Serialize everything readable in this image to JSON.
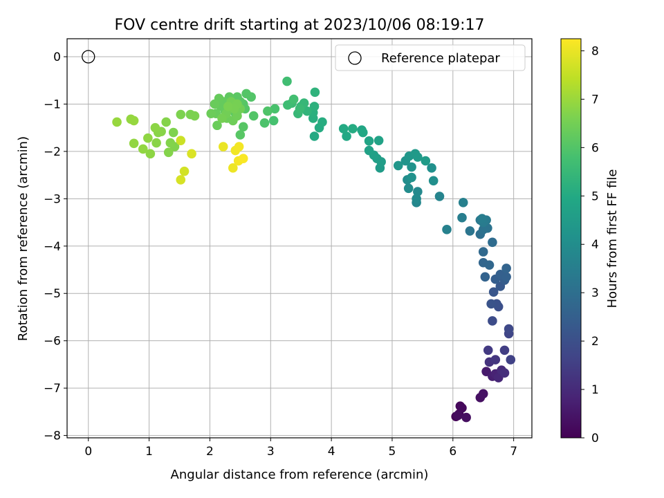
{
  "chart_data": {
    "type": "scatter",
    "title": "FOV centre drift starting at 2023/10/06 08:19:17",
    "xlabel": "Angular distance from reference (arcmin)",
    "ylabel": "Rotation from reference (arcmin)",
    "colorbar_label": "Hours from first FF file",
    "xlim": [
      -0.35,
      7.3
    ],
    "ylim": [
      -8.05,
      0.38
    ],
    "clim": [
      0,
      8.25
    ],
    "colormap": "viridis",
    "grid": true,
    "legend_position": "top-right",
    "xticks": [
      0,
      1,
      2,
      3,
      4,
      5,
      6,
      7
    ],
    "yticks": [
      0,
      -1,
      -2,
      -3,
      -4,
      -5,
      -6,
      -7,
      -8
    ],
    "cticks": [
      0,
      1,
      2,
      3,
      4,
      5,
      6,
      7,
      8
    ],
    "xtick_labels": [
      "0",
      "1",
      "2",
      "3",
      "4",
      "5",
      "6",
      "7"
    ],
    "ytick_labels": [
      "0",
      "−1",
      "−2",
      "−3",
      "−4",
      "−5",
      "−6",
      "−7",
      "−8"
    ],
    "ctick_labels": [
      "0",
      "1",
      "2",
      "3",
      "4",
      "5",
      "6",
      "7",
      "8"
    ],
    "reference": {
      "label": "Reference platepar",
      "x": 0,
      "y": 0
    },
    "points": [
      [
        6.05,
        -7.6,
        0.05
      ],
      [
        6.1,
        -7.55,
        0.1
      ],
      [
        6.12,
        -7.38,
        0.15
      ],
      [
        6.15,
        -7.42,
        0.2
      ],
      [
        6.08,
        -7.58,
        0.25
      ],
      [
        6.22,
        -7.62,
        0.3
      ],
      [
        6.45,
        -7.2,
        0.35
      ],
      [
        6.5,
        -7.12,
        0.4
      ],
      [
        6.55,
        -6.65,
        0.6
      ],
      [
        6.65,
        -6.75,
        0.7
      ],
      [
        6.7,
        -6.7,
        0.8
      ],
      [
        6.75,
        -6.78,
        0.9
      ],
      [
        6.8,
        -6.62,
        1.0
      ],
      [
        6.85,
        -6.68,
        1.1
      ],
      [
        6.6,
        -6.45,
        1.2
      ],
      [
        6.7,
        -6.4,
        1.3
      ],
      [
        6.58,
        -6.2,
        1.4
      ],
      [
        6.85,
        -6.2,
        1.5
      ],
      [
        6.95,
        -6.4,
        1.6
      ],
      [
        6.92,
        -5.85,
        1.7
      ],
      [
        6.92,
        -5.75,
        1.8
      ],
      [
        6.65,
        -5.58,
        1.9
      ],
      [
        6.75,
        -5.28,
        2.0
      ],
      [
        6.72,
        -5.22,
        2.05
      ],
      [
        6.63,
        -5.22,
        2.1
      ],
      [
        6.67,
        -4.97,
        2.2
      ],
      [
        6.78,
        -4.85,
        2.3
      ],
      [
        6.85,
        -4.72,
        2.4
      ],
      [
        6.7,
        -4.7,
        2.45
      ],
      [
        6.78,
        -4.6,
        2.5
      ],
      [
        6.88,
        -4.65,
        2.55
      ],
      [
        6.53,
        -4.65,
        2.6
      ],
      [
        6.88,
        -4.47,
        2.65
      ],
      [
        6.5,
        -4.35,
        2.7
      ],
      [
        6.6,
        -4.4,
        2.75
      ],
      [
        6.5,
        -4.12,
        2.8
      ],
      [
        6.65,
        -3.92,
        2.9
      ],
      [
        6.45,
        -3.75,
        3.0
      ],
      [
        6.5,
        -3.65,
        3.1
      ],
      [
        6.57,
        -3.62,
        3.15
      ],
      [
        6.28,
        -3.68,
        3.2
      ],
      [
        6.45,
        -3.45,
        3.3
      ],
      [
        6.55,
        -3.45,
        3.35
      ],
      [
        6.5,
        -3.5,
        3.4
      ],
      [
        6.48,
        -3.42,
        3.45
      ],
      [
        6.15,
        -3.4,
        3.5
      ],
      [
        6.17,
        -3.08,
        3.55
      ],
      [
        5.9,
        -3.65,
        3.6
      ],
      [
        5.78,
        -2.95,
        3.7
      ],
      [
        5.4,
        -3.08,
        3.8
      ],
      [
        5.42,
        -2.85,
        3.85
      ],
      [
        5.4,
        -3.0,
        3.9
      ],
      [
        5.27,
        -2.78,
        3.95
      ],
      [
        5.25,
        -2.6,
        4.0
      ],
      [
        5.68,
        -2.62,
        4.05
      ],
      [
        5.65,
        -2.35,
        4.1
      ],
      [
        5.32,
        -2.55,
        4.15
      ],
      [
        5.32,
        -2.33,
        4.2
      ],
      [
        5.22,
        -2.2,
        4.25
      ],
      [
        5.1,
        -2.3,
        4.3
      ],
      [
        5.28,
        -2.1,
        4.35
      ],
      [
        5.38,
        -2.05,
        4.4
      ],
      [
        5.42,
        -2.12,
        4.45
      ],
      [
        5.55,
        -2.2,
        4.5
      ],
      [
        4.8,
        -2.35,
        4.5
      ],
      [
        4.82,
        -2.22,
        4.55
      ],
      [
        4.75,
        -2.15,
        4.6
      ],
      [
        4.7,
        -2.08,
        4.65
      ],
      [
        4.62,
        -1.98,
        4.7
      ],
      [
        4.78,
        -1.77,
        4.75
      ],
      [
        4.62,
        -1.78,
        4.8
      ],
      [
        4.5,
        -1.55,
        4.85
      ],
      [
        4.52,
        -1.6,
        4.9
      ],
      [
        4.25,
        -1.68,
        4.95
      ],
      [
        4.2,
        -1.52,
        5.0
      ],
      [
        4.35,
        -1.52,
        5.05
      ],
      [
        3.72,
        -1.68,
        5.0
      ],
      [
        3.8,
        -1.5,
        5.05
      ],
      [
        3.85,
        -1.38,
        5.1
      ],
      [
        3.7,
        -1.3,
        5.15
      ],
      [
        3.7,
        -1.18,
        5.2
      ],
      [
        3.72,
        -1.05,
        5.25
      ],
      [
        3.73,
        -0.75,
        5.3
      ],
      [
        3.6,
        -1.15,
        5.35
      ],
      [
        3.5,
        -1.05,
        5.4
      ],
      [
        3.55,
        -0.98,
        5.45
      ],
      [
        3.45,
        -1.2,
        5.5
      ],
      [
        3.48,
        -1.1,
        5.55
      ],
      [
        3.35,
        -0.98,
        5.6
      ],
      [
        3.28,
        -1.02,
        5.65
      ],
      [
        3.27,
        -0.52,
        5.7
      ],
      [
        3.38,
        -0.9,
        5.75
      ],
      [
        3.05,
        -1.35,
        5.8
      ],
      [
        3.07,
        -1.1,
        5.85
      ],
      [
        2.9,
        -1.4,
        5.9
      ],
      [
        2.95,
        -1.15,
        5.95
      ],
      [
        2.72,
        -1.25,
        6.0
      ],
      [
        2.68,
        -0.85,
        6.0
      ],
      [
        2.6,
        -0.78,
        6.02
      ],
      [
        2.55,
        -1.0,
        6.04
      ],
      [
        2.58,
        -1.1,
        6.05
      ],
      [
        2.55,
        -1.48,
        6.06
      ],
      [
        2.5,
        -1.65,
        6.08
      ],
      [
        2.5,
        -0.95,
        6.1
      ],
      [
        2.45,
        -0.85,
        6.12
      ],
      [
        2.4,
        -1.0,
        6.14
      ],
      [
        2.35,
        -1.1,
        6.16
      ],
      [
        2.42,
        -1.2,
        6.18
      ],
      [
        2.32,
        -0.85,
        6.2
      ],
      [
        2.3,
        -1.0,
        6.22
      ],
      [
        2.25,
        -1.15,
        6.24
      ],
      [
        2.22,
        -0.95,
        6.26
      ],
      [
        2.18,
        -1.05,
        6.28
      ],
      [
        2.15,
        -0.88,
        6.3
      ],
      [
        2.1,
        -1.2,
        6.32
      ],
      [
        2.08,
        -1.0,
        6.34
      ],
      [
        2.12,
        -1.45,
        6.36
      ],
      [
        2.02,
        -1.2,
        6.38
      ],
      [
        2.28,
        -1.3,
        6.4
      ],
      [
        2.38,
        -1.35,
        6.42
      ],
      [
        2.45,
        -1.25,
        6.44
      ],
      [
        2.5,
        -1.1,
        6.46
      ],
      [
        2.27,
        -1.2,
        6.48
      ],
      [
        2.35,
        -0.95,
        6.5
      ],
      [
        2.2,
        -1.3,
        6.52
      ],
      [
        2.45,
        -1.0,
        6.54
      ],
      [
        2.4,
        -1.1,
        6.56
      ],
      [
        2.3,
        -1.05,
        6.58
      ],
      [
        1.68,
        -1.22,
        6.6
      ],
      [
        1.75,
        -1.25,
        6.62
      ],
      [
        1.52,
        -1.22,
        6.64
      ],
      [
        1.4,
        -1.6,
        6.66
      ],
      [
        1.42,
        -1.9,
        6.68
      ],
      [
        1.35,
        -1.82,
        6.7
      ],
      [
        1.32,
        -2.02,
        6.72
      ],
      [
        1.28,
        -1.38,
        6.74
      ],
      [
        1.2,
        -1.58,
        6.76
      ],
      [
        1.15,
        -1.6,
        6.78
      ],
      [
        1.12,
        -1.82,
        6.8
      ],
      [
        1.1,
        -1.5,
        6.82
      ],
      [
        1.02,
        -2.05,
        6.84
      ],
      [
        0.98,
        -1.72,
        6.86
      ],
      [
        0.9,
        -1.95,
        6.88
      ],
      [
        0.75,
        -1.83,
        6.9
      ],
      [
        0.7,
        -1.32,
        6.92
      ],
      [
        0.75,
        -1.35,
        6.94
      ],
      [
        0.47,
        -1.38,
        6.96
      ],
      [
        1.52,
        -1.77,
        7.6
      ],
      [
        1.58,
        -2.42,
        7.7
      ],
      [
        1.52,
        -2.6,
        7.75
      ],
      [
        1.7,
        -2.05,
        7.8
      ],
      [
        2.22,
        -1.9,
        8.0
      ],
      [
        2.38,
        -2.35,
        8.05
      ],
      [
        2.42,
        -1.98,
        8.1
      ],
      [
        2.48,
        -1.9,
        8.12
      ],
      [
        2.47,
        -2.2,
        8.15
      ],
      [
        2.55,
        -2.15,
        8.2
      ]
    ]
  }
}
